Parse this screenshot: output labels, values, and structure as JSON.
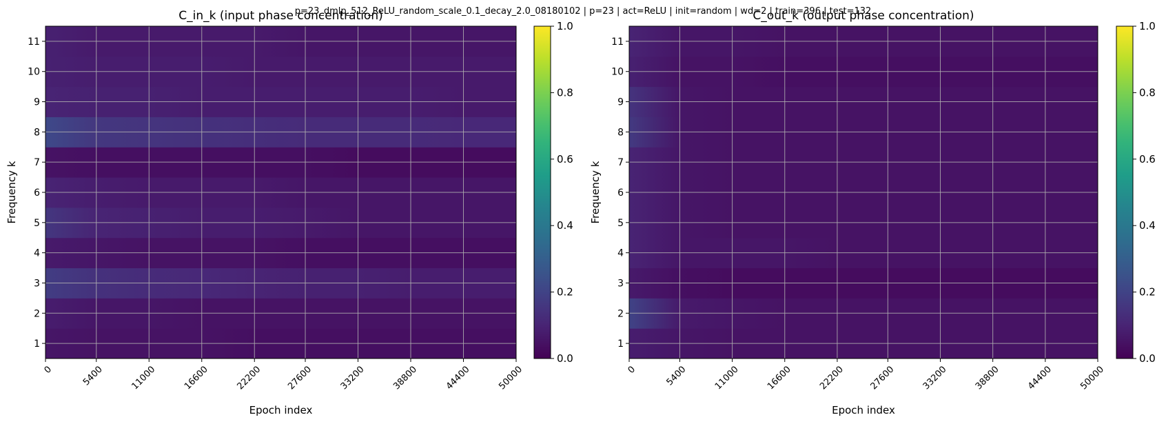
{
  "figure_title": "p=23_dmlp_512_ReLU_random_scale_0.1_decay_2.0_08180102 | p=23 | act=ReLU | init=random | wd=2 | train=396 | test=132",
  "chart_data": [
    {
      "type": "heatmap",
      "title": "C_in_k (input phase concentration)",
      "xlabel": "Epoch index",
      "ylabel": "Frequency k",
      "colormap": "viridis",
      "xlim": [
        0,
        50000
      ],
      "x_ticks": [
        0,
        5400,
        11000,
        16600,
        22200,
        27600,
        33200,
        38800,
        44400,
        50000
      ],
      "y_ticks": [
        1,
        2,
        3,
        4,
        5,
        6,
        7,
        8,
        9,
        10,
        11
      ],
      "colorbar": {
        "min": 0.0,
        "max": 1.0,
        "ticks": [
          "0.0",
          "0.2",
          "0.4",
          "0.6",
          "0.8",
          "1.0"
        ]
      },
      "grid": true,
      "epochs": [
        0,
        5400,
        11000,
        16600,
        22200,
        27600,
        33200,
        38800,
        44400,
        50000
      ],
      "frequencies": [
        1,
        2,
        3,
        4,
        5,
        6,
        7,
        8,
        9,
        10,
        11
      ],
      "z": [
        [
          0.06,
          0.05,
          0.05,
          0.05,
          0.04,
          0.04,
          0.04,
          0.04,
          0.04,
          0.04
        ],
        [
          0.08,
          0.06,
          0.06,
          0.05,
          0.05,
          0.05,
          0.05,
          0.05,
          0.05,
          0.05
        ],
        [
          0.18,
          0.14,
          0.12,
          0.11,
          0.1,
          0.09,
          0.09,
          0.08,
          0.08,
          0.08
        ],
        [
          0.07,
          0.06,
          0.05,
          0.05,
          0.05,
          0.04,
          0.04,
          0.04,
          0.04,
          0.04
        ],
        [
          0.16,
          0.1,
          0.09,
          0.08,
          0.08,
          0.07,
          0.06,
          0.06,
          0.06,
          0.06
        ],
        [
          0.1,
          0.08,
          0.07,
          0.07,
          0.07,
          0.06,
          0.06,
          0.06,
          0.06,
          0.06
        ],
        [
          0.05,
          0.04,
          0.04,
          0.04,
          0.04,
          0.04,
          0.03,
          0.03,
          0.03,
          0.03
        ],
        [
          0.22,
          0.16,
          0.15,
          0.14,
          0.13,
          0.12,
          0.12,
          0.12,
          0.11,
          0.11
        ],
        [
          0.1,
          0.09,
          0.09,
          0.08,
          0.08,
          0.08,
          0.08,
          0.08,
          0.07,
          0.07
        ],
        [
          0.09,
          0.08,
          0.08,
          0.08,
          0.07,
          0.07,
          0.07,
          0.07,
          0.07,
          0.07
        ],
        [
          0.09,
          0.07,
          0.07,
          0.07,
          0.07,
          0.06,
          0.06,
          0.06,
          0.06,
          0.06
        ]
      ]
    },
    {
      "type": "heatmap",
      "title": "C_out_k (output phase concentration)",
      "xlabel": "Epoch index",
      "ylabel": "Frequency k",
      "colormap": "viridis",
      "xlim": [
        0,
        50000
      ],
      "x_ticks": [
        0,
        5400,
        11000,
        16600,
        22200,
        27600,
        33200,
        38800,
        44400,
        50000
      ],
      "y_ticks": [
        1,
        2,
        3,
        4,
        5,
        6,
        7,
        8,
        9,
        10,
        11
      ],
      "colorbar": {
        "min": 0.0,
        "max": 1.0,
        "ticks": [
          "0.0",
          "0.2",
          "0.4",
          "0.6",
          "0.8",
          "1.0"
        ]
      },
      "grid": true,
      "epochs": [
        0,
        5400,
        11000,
        16600,
        22200,
        27600,
        33200,
        38800,
        44400,
        50000
      ],
      "frequencies": [
        1,
        2,
        3,
        4,
        5,
        6,
        7,
        8,
        9,
        10,
        11
      ],
      "z": [
        [
          0.08,
          0.06,
          0.05,
          0.05,
          0.05,
          0.05,
          0.05,
          0.05,
          0.05,
          0.05
        ],
        [
          0.2,
          0.07,
          0.06,
          0.05,
          0.05,
          0.05,
          0.05,
          0.05,
          0.05,
          0.05
        ],
        [
          0.07,
          0.04,
          0.03,
          0.03,
          0.03,
          0.03,
          0.03,
          0.03,
          0.03,
          0.03
        ],
        [
          0.1,
          0.06,
          0.06,
          0.06,
          0.05,
          0.05,
          0.05,
          0.05,
          0.05,
          0.05
        ],
        [
          0.1,
          0.06,
          0.05,
          0.05,
          0.05,
          0.05,
          0.05,
          0.05,
          0.05,
          0.05
        ],
        [
          0.1,
          0.06,
          0.05,
          0.05,
          0.05,
          0.05,
          0.05,
          0.05,
          0.05,
          0.05
        ],
        [
          0.1,
          0.06,
          0.05,
          0.05,
          0.05,
          0.05,
          0.05,
          0.05,
          0.05,
          0.05
        ],
        [
          0.17,
          0.06,
          0.05,
          0.05,
          0.05,
          0.05,
          0.05,
          0.05,
          0.05,
          0.05
        ],
        [
          0.15,
          0.06,
          0.05,
          0.05,
          0.05,
          0.05,
          0.05,
          0.05,
          0.05,
          0.05
        ],
        [
          0.09,
          0.05,
          0.05,
          0.04,
          0.04,
          0.04,
          0.04,
          0.04,
          0.04,
          0.04
        ],
        [
          0.1,
          0.06,
          0.06,
          0.05,
          0.05,
          0.05,
          0.05,
          0.05,
          0.05,
          0.05
        ]
      ]
    }
  ]
}
